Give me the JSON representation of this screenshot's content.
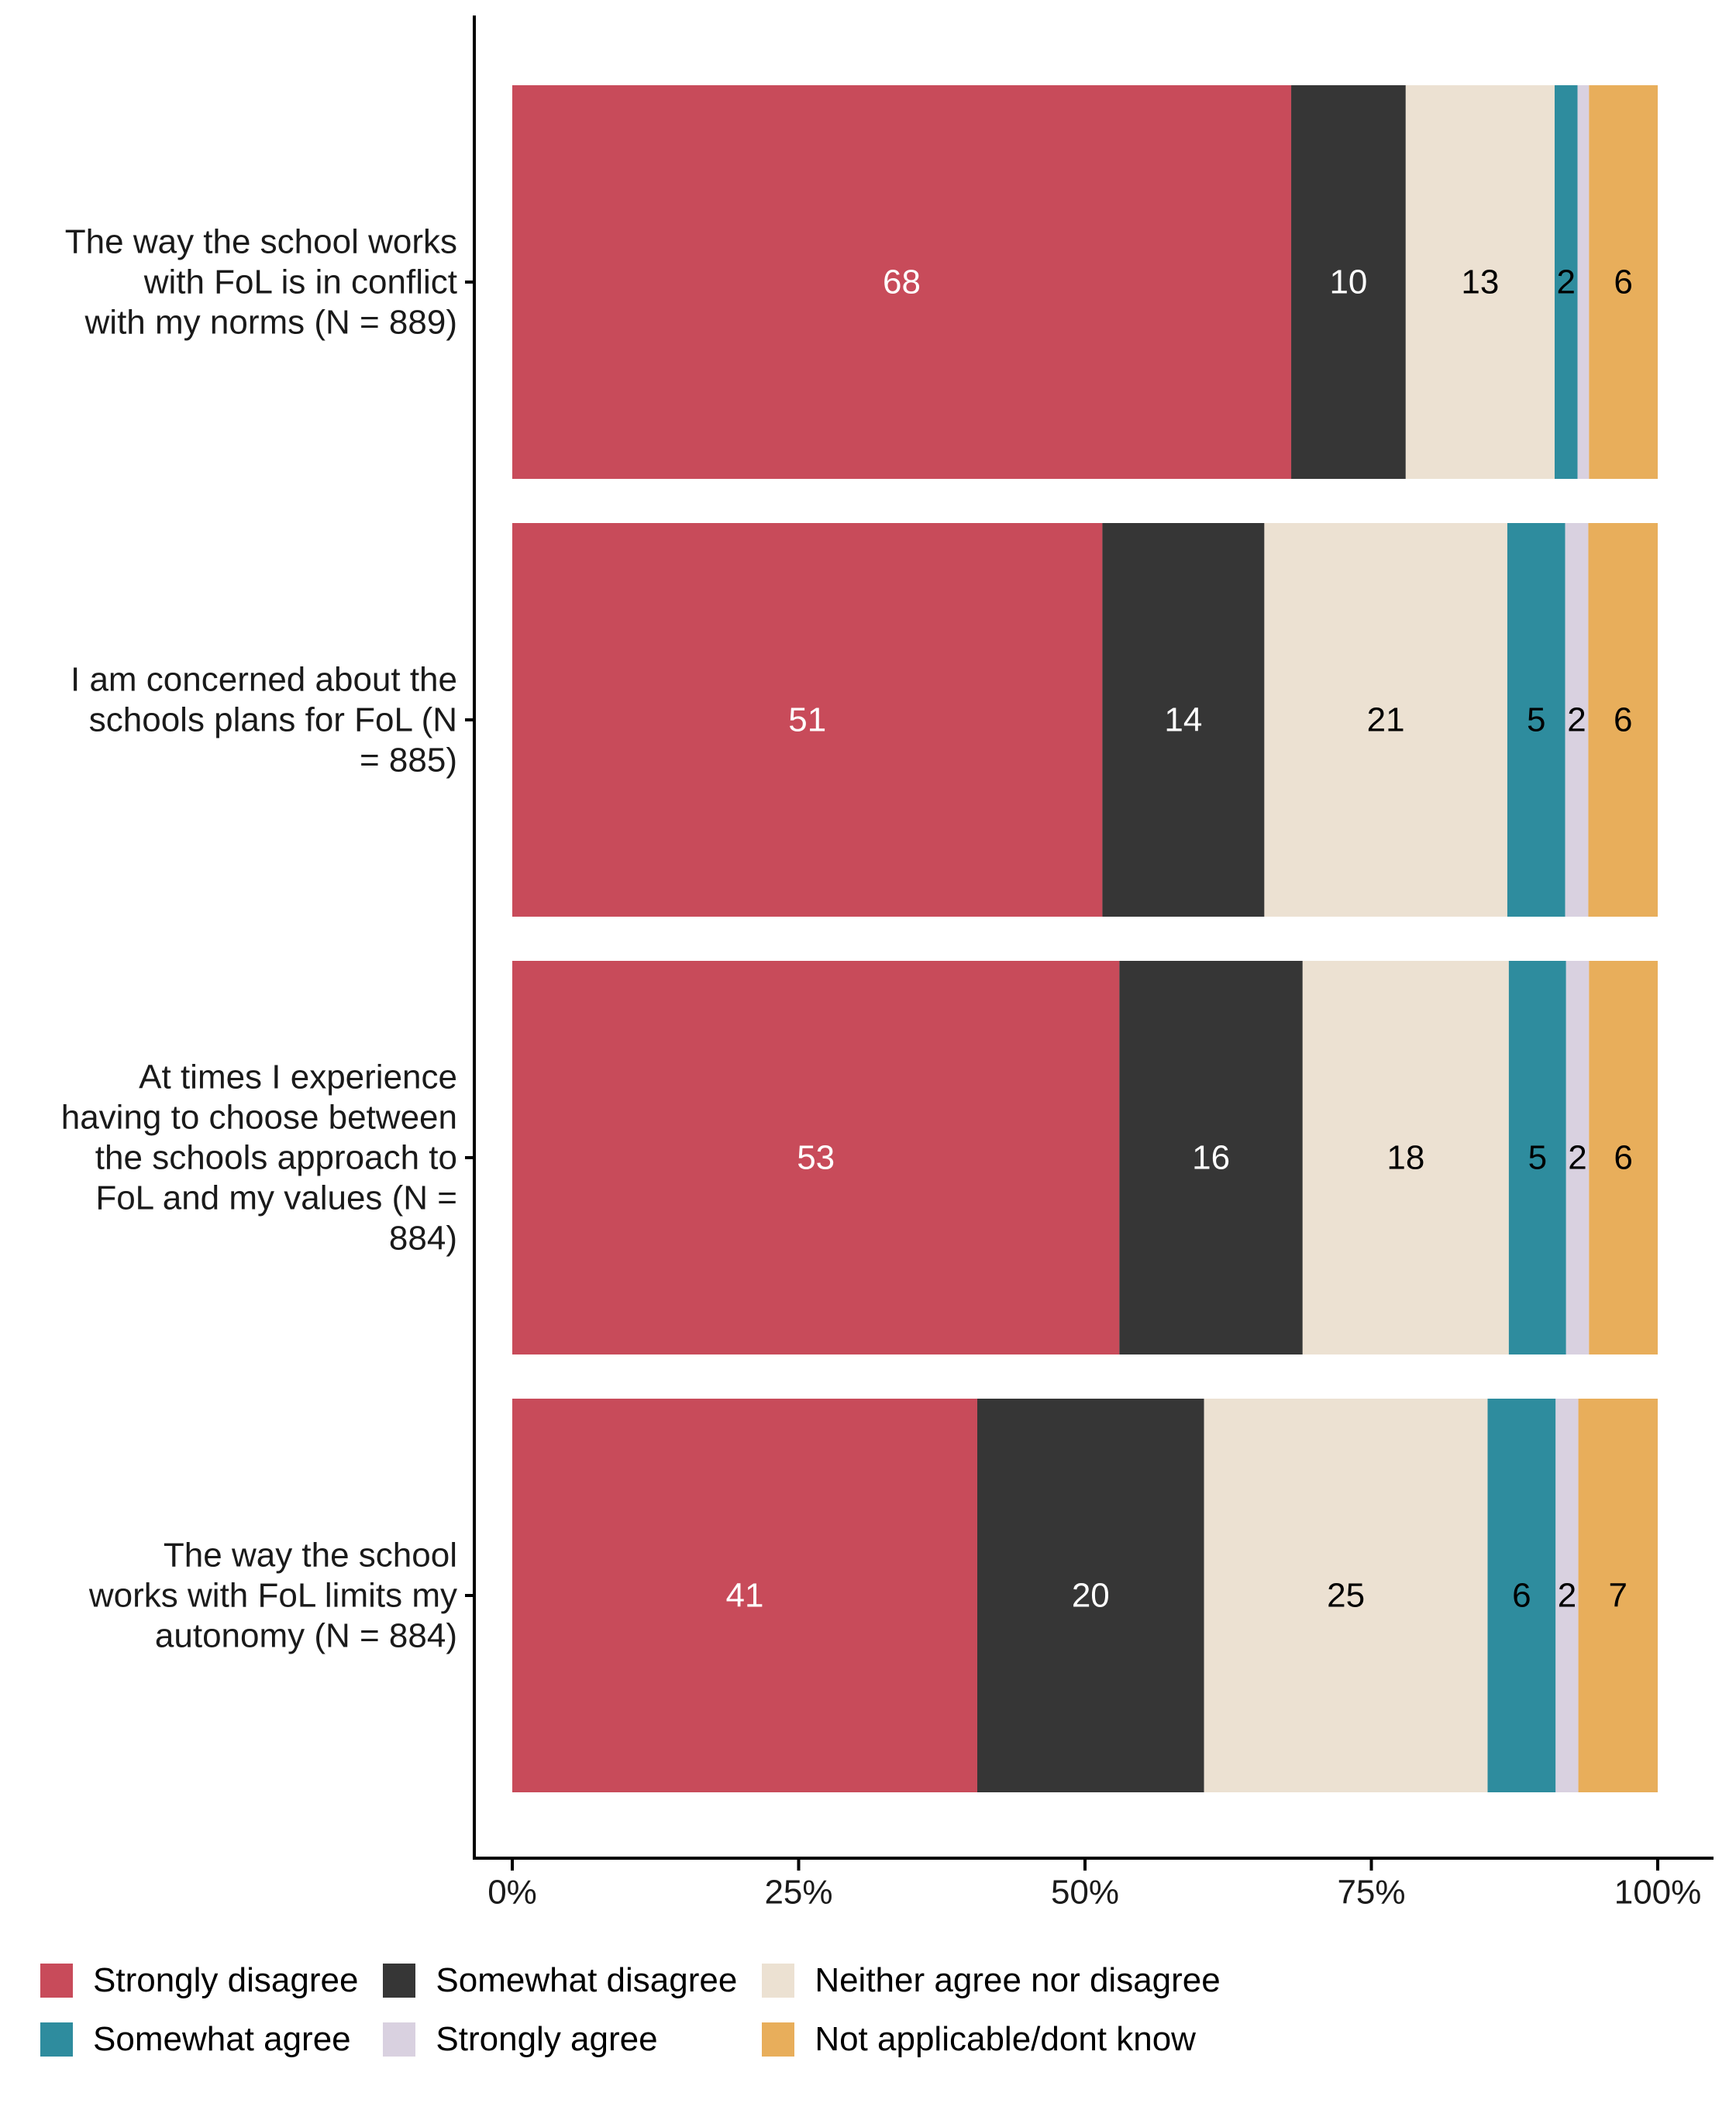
{
  "chart_data": {
    "type": "bar",
    "orientation": "horizontal",
    "stacked": true,
    "title": "",
    "xlabel": "",
    "ylabel": "",
    "xlim": [
      0,
      100
    ],
    "x_ticks": [
      0,
      25,
      50,
      75,
      100
    ],
    "x_tick_labels": [
      "0%",
      "25%",
      "50%",
      "75%",
      "100%"
    ],
    "grid": false,
    "legend_position": "bottom",
    "categories": [
      "The way the school works with FoL is in conflict with my norms (N = 889)",
      "I am concerned about the schools plans for FoL (N = 885)",
      "At times I experience having to choose between the schools approach to FoL and my values (N = 884)",
      "The way the school works with FoL limits my autonomy (N = 884)"
    ],
    "category_label_lines": [
      [
        "The way the school works",
        "with FoL is in conflict",
        "with my norms (N = 889)"
      ],
      [
        "I am concerned about the",
        "schools plans for FoL (N",
        "= 885)"
      ],
      [
        "At times I experience",
        "having to choose between",
        "the schools approach to",
        "FoL and my values (N =",
        "884)"
      ],
      [
        "The way the school",
        "works with FoL limits my",
        "autonomy (N = 884)"
      ]
    ],
    "series": [
      {
        "name": "Strongly disagree",
        "color": "#C84B5A",
        "label_color": "#FFFFFF",
        "values": [
          68,
          51,
          53,
          41
        ],
        "labels": [
          "68",
          "51",
          "53",
          "41"
        ]
      },
      {
        "name": "Somewhat disagree",
        "color": "#363636",
        "label_color": "#FFFFFF",
        "values": [
          10,
          14,
          16,
          20
        ],
        "labels": [
          "10",
          "14",
          "16",
          "20"
        ]
      },
      {
        "name": "Neither agree nor disagree",
        "color": "#ECE1D2",
        "label_color": "#000000",
        "values": [
          13,
          21,
          18,
          25
        ],
        "labels": [
          "13",
          "21",
          "18",
          "25"
        ]
      },
      {
        "name": "Somewhat agree",
        "color": "#2E8C9E",
        "label_color": "#000000",
        "values": [
          2,
          5,
          5,
          6
        ],
        "labels": [
          "2",
          "5",
          "5",
          "6"
        ]
      },
      {
        "name": "Strongly agree",
        "color": "#D9D1E0",
        "label_color": "#000000",
        "values": [
          1,
          2,
          2,
          2
        ],
        "labels": [
          "",
          "2",
          "2",
          "2"
        ]
      },
      {
        "name": "Not applicable/dont know",
        "color": "#E8AE5B",
        "label_color": "#000000",
        "values": [
          6,
          6,
          6,
          7
        ],
        "labels": [
          "6",
          "6",
          "6",
          "7"
        ]
      }
    ]
  }
}
